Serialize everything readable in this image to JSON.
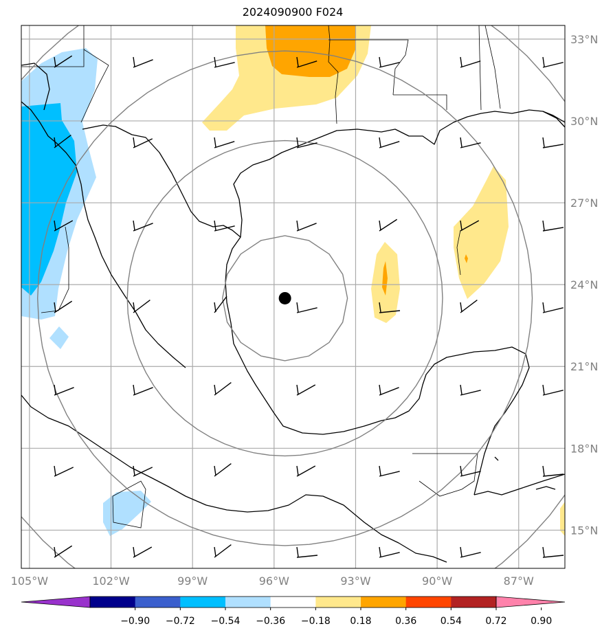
{
  "title": "2024090900 F024",
  "map": {
    "lon_range": [
      -105.3,
      -85.3
    ],
    "lat_range": [
      13.6,
      33.5
    ],
    "lat_ticks": [
      {
        "value": 33,
        "label": "33°N"
      },
      {
        "value": 30,
        "label": "30°N"
      },
      {
        "value": 27,
        "label": "27°N"
      },
      {
        "value": 24,
        "label": "24°N"
      },
      {
        "value": 21,
        "label": "21°N"
      },
      {
        "value": 18,
        "label": "18°N"
      },
      {
        "value": 15,
        "label": "15°N"
      }
    ],
    "lon_ticks": [
      {
        "value": -105,
        "label": "105°W"
      },
      {
        "value": -102,
        "label": "102°W"
      },
      {
        "value": -99,
        "label": "99°W"
      },
      {
        "value": -96,
        "label": "96°W"
      },
      {
        "value": -93,
        "label": "93°W"
      },
      {
        "value": -90,
        "label": "90°W"
      },
      {
        "value": -87,
        "label": "87°W"
      }
    ],
    "center_marker": {
      "lon": -95.6,
      "lat": 23.5
    },
    "range_rings_deg": [
      2.3,
      5.8,
      9.1,
      12.6
    ],
    "field_colors": {
      "light_blue": "#b0e0ff",
      "blue": "#00bfff",
      "light_yellow": "#ffe88c",
      "orange": "#ffa500"
    }
  },
  "colorbar": {
    "colors": [
      "#9932cc",
      "#00008b",
      "#3a5fcd",
      "#00bfff",
      "#b0e0ff",
      "#ffffff",
      "#ffe88c",
      "#ffa500",
      "#ff4500",
      "#b22222",
      "#ff82ab"
    ],
    "tick_labels": [
      "−0.90",
      "−0.72",
      "−0.54",
      "−0.36",
      "−0.18",
      "0.18",
      "0.36",
      "0.54",
      "0.72",
      "0.90"
    ]
  }
}
